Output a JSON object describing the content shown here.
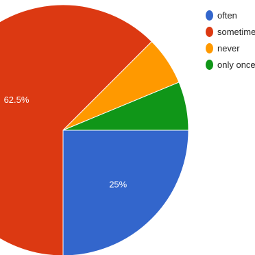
{
  "chart_data": {
    "type": "pie",
    "slices": [
      {
        "label": "often",
        "value": 25,
        "data_label": "25%",
        "color": "#3366cc"
      },
      {
        "label": "sometimes",
        "value": 62.5,
        "data_label": "62.5%",
        "color": "#dc3912"
      },
      {
        "label": "never",
        "value": 6.25,
        "data_label": "",
        "color": "#ff9900"
      },
      {
        "label": "only once",
        "value": 6.25,
        "data_label": "",
        "color": "#109618"
      }
    ],
    "legend_position": "right"
  }
}
